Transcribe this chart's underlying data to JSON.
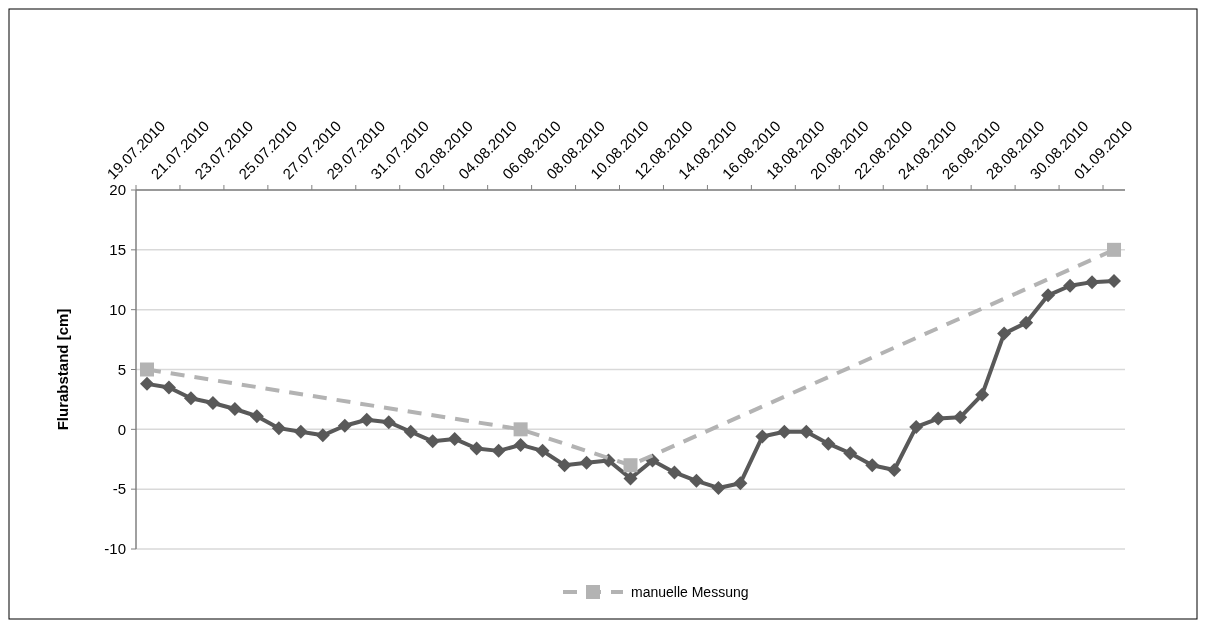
{
  "chart_data": {
    "type": "line",
    "ylabel": "Flurabstand [cm]",
    "xlim": [
      "2010-07-19",
      "2010-09-02"
    ],
    "xticks": [
      {
        "value": "2010-07-19",
        "label": "19.07.2010"
      },
      {
        "value": "2010-07-21",
        "label": "21.07.2010"
      },
      {
        "value": "2010-07-23",
        "label": "23.07.2010"
      },
      {
        "value": "2010-07-25",
        "label": "25.07.2010"
      },
      {
        "value": "2010-07-27",
        "label": "27.07.2010"
      },
      {
        "value": "2010-07-29",
        "label": "29.07.2010"
      },
      {
        "value": "2010-07-31",
        "label": "31.07.2010"
      },
      {
        "value": "2010-08-02",
        "label": "02.08.2010"
      },
      {
        "value": "2010-08-04",
        "label": "04.08.2010"
      },
      {
        "value": "2010-08-06",
        "label": "06.08.2010"
      },
      {
        "value": "2010-08-08",
        "label": "08.08.2010"
      },
      {
        "value": "2010-08-10",
        "label": "10.08.2010"
      },
      {
        "value": "2010-08-12",
        "label": "12.08.2010"
      },
      {
        "value": "2010-08-14",
        "label": "14.08.2010"
      },
      {
        "value": "2010-08-16",
        "label": "16.08.2010"
      },
      {
        "value": "2010-08-18",
        "label": "18.08.2010"
      },
      {
        "value": "2010-08-20",
        "label": "20.08.2010"
      },
      {
        "value": "2010-08-22",
        "label": "22.08.2010"
      },
      {
        "value": "2010-08-24",
        "label": "24.08.2010"
      },
      {
        "value": "2010-08-26",
        "label": "26.08.2010"
      },
      {
        "value": "2010-08-28",
        "label": "28.08.2010"
      },
      {
        "value": "2010-08-30",
        "label": "30.08.2010"
      },
      {
        "value": "2010-09-01",
        "label": "01.09.2010"
      }
    ],
    "ylim": [
      -10,
      20
    ],
    "yticks": [
      -10,
      -5,
      0,
      5,
      10,
      15,
      20
    ],
    "grid": "y",
    "legend": "bottom",
    "series": [
      {
        "color": "#595959",
        "marker": "diamond",
        "line_style": "solid",
        "x": [
          "2010-07-19T12:00",
          "2010-07-20T12:00",
          "2010-07-21T12:00",
          "2010-07-22T12:00",
          "2010-07-23T12:00",
          "2010-07-24T12:00",
          "2010-07-25T12:00",
          "2010-07-26T12:00",
          "2010-07-27T12:00",
          "2010-07-28T12:00",
          "2010-07-29T12:00",
          "2010-07-30T12:00",
          "2010-07-31T12:00",
          "2010-08-01T12:00",
          "2010-08-02T12:00",
          "2010-08-03T12:00",
          "2010-08-04T12:00",
          "2010-08-05T12:00",
          "2010-08-06T12:00",
          "2010-08-07T12:00",
          "2010-08-08T12:00",
          "2010-08-09T12:00",
          "2010-08-10T12:00",
          "2010-08-11T12:00",
          "2010-08-12T12:00",
          "2010-08-13T12:00",
          "2010-08-14T12:00",
          "2010-08-15T12:00",
          "2010-08-16T12:00",
          "2010-08-17T12:00",
          "2010-08-18T12:00",
          "2010-08-19T12:00",
          "2010-08-20T12:00",
          "2010-08-21T12:00",
          "2010-08-22T12:00",
          "2010-08-23T12:00",
          "2010-08-24T12:00",
          "2010-08-25T12:00",
          "2010-08-26T12:00",
          "2010-08-27T12:00",
          "2010-08-28T12:00",
          "2010-08-29T12:00",
          "2010-08-30T12:00",
          "2010-08-31T12:00",
          "2010-09-01T12:00"
        ],
        "values": [
          3.8,
          3.5,
          2.6,
          2.2,
          1.7,
          1.1,
          0.1,
          -0.2,
          -0.5,
          0.3,
          0.8,
          0.6,
          -0.2,
          -1.0,
          -0.8,
          -1.6,
          -1.8,
          -1.3,
          -1.8,
          -3.0,
          -2.8,
          -2.6,
          -4.1,
          -2.6,
          -3.6,
          -4.3,
          -4.9,
          -4.5,
          -0.6,
          -0.2,
          -0.2,
          -1.2,
          -2.0,
          -3.0,
          -3.4,
          0.2,
          0.9,
          1.0,
          2.9,
          8.0,
          8.9,
          11.2,
          12.0,
          12.3,
          12.4
        ]
      },
      {
        "name": "manuelle Messung",
        "color": "#b3b3b3",
        "marker": "square",
        "line_style": "dashed",
        "x": [
          "2010-07-19T12:00",
          "2010-08-05T12:00",
          "2010-08-10T12:00",
          "2010-09-01T12:00"
        ],
        "values": [
          5,
          0,
          -3,
          15
        ]
      }
    ]
  }
}
